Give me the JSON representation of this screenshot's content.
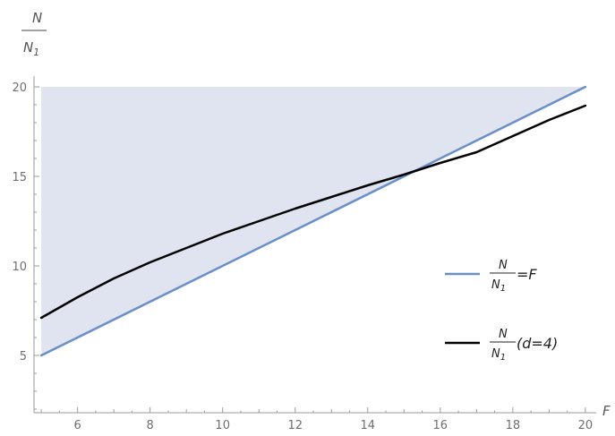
{
  "chart_data": {
    "type": "line",
    "xlabel": "F",
    "ylabel": {
      "numerator": "N",
      "denominator": "N",
      "denominator_sub": "1"
    },
    "xlim": [
      4.8,
      20.2
    ],
    "ylim": [
      1.8,
      20.3
    ],
    "xticks": [
      6,
      8,
      10,
      12,
      14,
      16,
      18,
      20
    ],
    "xtick_labels": [
      "6",
      "8",
      "10",
      "12",
      "14",
      "16",
      "18",
      "20"
    ],
    "yticks": [
      5,
      10,
      15,
      20
    ],
    "ytick_labels": [
      "5",
      "10",
      "15",
      "20"
    ],
    "grid": false,
    "legend_position": "right",
    "shaded_region": {
      "color": "#dfe4f0",
      "x": [
        5,
        20
      ],
      "lower": [
        5,
        20
      ],
      "upper": [
        20,
        20
      ]
    },
    "series": [
      {
        "legend": {
          "numerator": "N",
          "denominator": "N",
          "denominator_sub": "1",
          "suffix": "=F"
        },
        "color": "#6a8fc6",
        "x": [
          5,
          20
        ],
        "y": [
          5,
          20
        ]
      },
      {
        "legend": {
          "numerator": "N",
          "denominator": "N",
          "denominator_sub": "1",
          "suffix": " (d=4)"
        },
        "color": "#000000",
        "x": [
          5,
          6,
          7,
          8,
          9,
          10,
          11,
          12,
          13,
          14,
          15,
          16,
          17,
          18,
          19,
          20
        ],
        "y": [
          7.1,
          8.25,
          9.3,
          10.2,
          11.0,
          11.8,
          12.5,
          13.2,
          13.85,
          14.5,
          15.1,
          15.75,
          16.35,
          17.25,
          18.15,
          18.95
        ]
      }
    ]
  }
}
